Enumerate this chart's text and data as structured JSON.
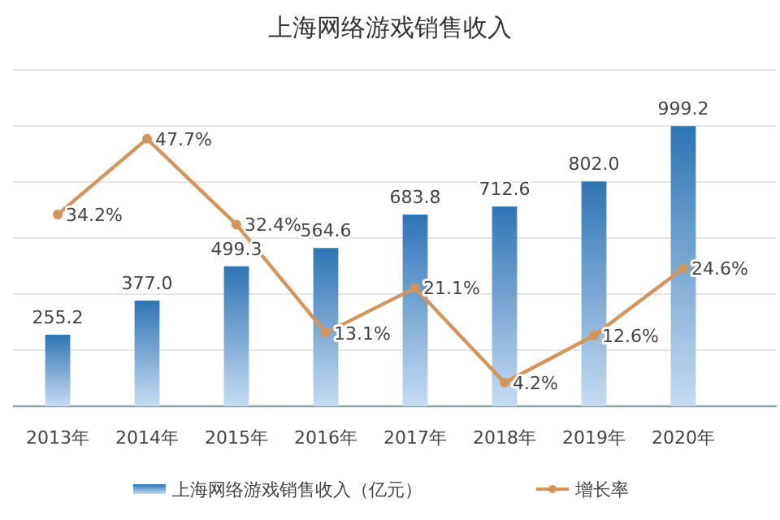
{
  "chart_data": {
    "type": "bar",
    "title": "上海网络游戏销售收入",
    "categories": [
      "2013年",
      "2014年",
      "2015年",
      "2016年",
      "2017年",
      "2018年",
      "2019年",
      "2020年"
    ],
    "series": [
      {
        "name": "上海网络游戏销售收入（亿元）",
        "color": "#2e75b6",
        "values": [
          255.2,
          377.0,
          499.3,
          564.6,
          683.8,
          712.6,
          802.0,
          999.2
        ],
        "value_labels": [
          "255.2",
          "377.0",
          "499.3",
          "564.6",
          "683.8",
          "712.6",
          "802.0",
          "999.2"
        ]
      },
      {
        "name": "增长率",
        "type": "line",
        "axis": "y2",
        "color": "#d4945a",
        "values": [
          34.2,
          47.7,
          32.4,
          13.1,
          21.1,
          4.2,
          12.6,
          24.6
        ],
        "value_labels": [
          "34.2%",
          "47.7%",
          "32.4%",
          "13.1%",
          "21.1%",
          "4.2%",
          "12.6%",
          "24.6%"
        ]
      }
    ],
    "ylim": [
      0,
      1200
    ],
    "yticks": [
      {
        "value": 0,
        "label": null
      },
      {
        "value": 200,
        "label": null
      },
      {
        "value": 400,
        "label": null
      },
      {
        "value": 600,
        "label": null
      },
      {
        "value": 800,
        "label": null
      },
      {
        "value": 1000,
        "label": null
      },
      {
        "value": 1200,
        "label": null
      }
    ],
    "y2lim": [
      0,
      60
    ],
    "tick_labels": "x",
    "grid": "y",
    "legend": "bottom",
    "marker": "circle"
  }
}
